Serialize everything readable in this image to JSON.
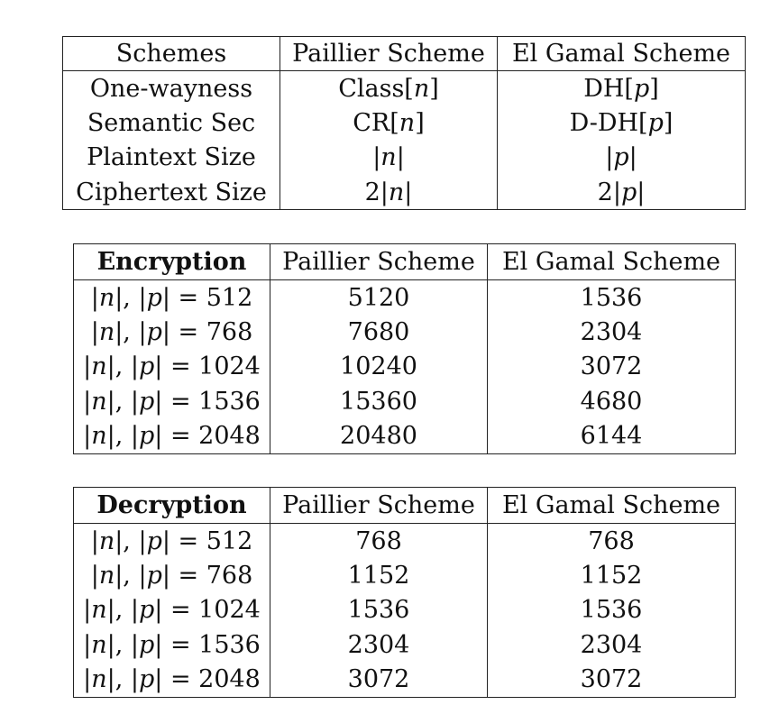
{
  "properties_table": {
    "headers": [
      "Schemes",
      "Paillier Scheme",
      "El Gamal Scheme"
    ],
    "rows": [
      [
        "One-wayness",
        "Class[n]",
        "DH[p]"
      ],
      [
        "Semantic Sec",
        "CR[n]",
        "D-DH[p]"
      ],
      [
        "Plaintext Size",
        "|n|",
        "|p|"
      ],
      [
        "Ciphertext Size",
        "2|n|",
        "2|p|"
      ]
    ]
  },
  "encryption_table": {
    "headers": [
      "Encryption",
      "Paillier Scheme",
      "El Gamal Scheme"
    ],
    "rows": [
      [
        "|n|, |p| = 512",
        "5120",
        "1536"
      ],
      [
        "|n|, |p| = 768",
        "7680",
        "2304"
      ],
      [
        "|n|, |p| = 1024",
        "10240",
        "3072"
      ],
      [
        "|n|, |p| = 1536",
        "15360",
        "4680"
      ],
      [
        "|n|, |p| = 2048",
        "20480",
        "6144"
      ]
    ]
  },
  "decryption_table": {
    "headers": [
      "Decryption",
      "Paillier Scheme",
      "El Gamal Scheme"
    ],
    "rows": [
      [
        "|n|, |p| = 512",
        "768",
        "768"
      ],
      [
        "|n|, |p| = 768",
        "1152",
        "1152"
      ],
      [
        "|n|, |p| = 1024",
        "1536",
        "1536"
      ],
      [
        "|n|, |p| = 1536",
        "2304",
        "2304"
      ],
      [
        "|n|, |p| = 2048",
        "3072",
        "3072"
      ]
    ]
  }
}
